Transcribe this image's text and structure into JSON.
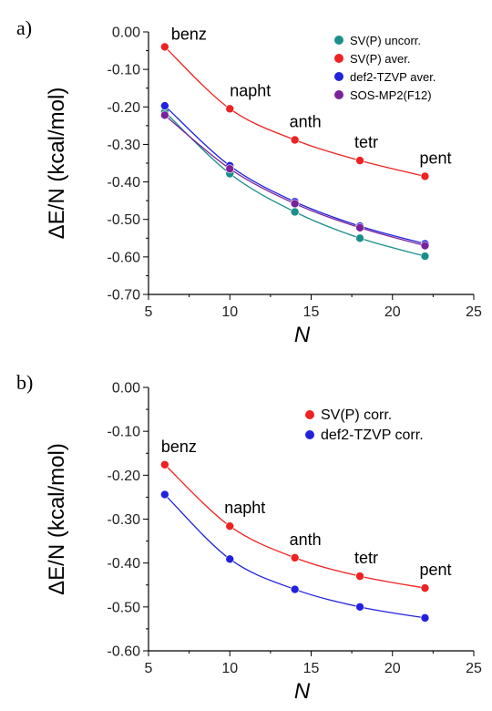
{
  "chart_data": [
    {
      "panel_label": "a)",
      "type": "scatter",
      "xlabel": "N",
      "ylabel": "ΔE/N (kcal/mol)",
      "xlim": [
        5,
        25
      ],
      "ylim": [
        -0.7,
        0.0
      ],
      "xticks": [
        "5",
        "10",
        "15",
        "20",
        "25"
      ],
      "yticks": [
        "0.00",
        "-0.10",
        "-0.20",
        "-0.30",
        "-0.40",
        "-0.50",
        "-0.60",
        "-0.70"
      ],
      "grid": false,
      "legend_position": "top-right",
      "series": [
        {
          "name": "SV(P) uncorr.",
          "color": "#1a8f8a",
          "x": [
            6,
            10,
            14,
            18,
            22
          ],
          "y": [
            -0.213,
            -0.378,
            -0.48,
            -0.55,
            -0.598
          ]
        },
        {
          "name": "SV(P) aver.",
          "color": "#ee2222",
          "x": [
            6,
            10,
            14,
            18,
            22
          ],
          "y": [
            -0.04,
            -0.205,
            -0.288,
            -0.343,
            -0.385
          ]
        },
        {
          "name": "def2-TZVP aver.",
          "color": "#2222dd",
          "x": [
            6,
            10,
            14,
            18,
            22
          ],
          "y": [
            -0.197,
            -0.357,
            -0.453,
            -0.518,
            -0.565
          ]
        },
        {
          "name": "SOS-MP2(F12)",
          "color": "#7a2299",
          "x": [
            6,
            10,
            14,
            18,
            22
          ],
          "y": [
            -0.222,
            -0.365,
            -0.458,
            -0.522,
            -0.57
          ]
        }
      ],
      "annotations": [
        {
          "text": "benz",
          "x": 6,
          "y": -0.04
        },
        {
          "text": "napht",
          "x": 10,
          "y": -0.205
        },
        {
          "text": "anth",
          "x": 14,
          "y": -0.288
        },
        {
          "text": "tetr",
          "x": 18,
          "y": -0.343
        },
        {
          "text": "pent",
          "x": 22,
          "y": -0.385
        }
      ]
    },
    {
      "panel_label": "b)",
      "type": "scatter",
      "xlabel": "N",
      "ylabel": "ΔE/N (kcal/mol)",
      "xlim": [
        5,
        25
      ],
      "ylim": [
        -0.6,
        0.0
      ],
      "xticks": [
        "5",
        "10",
        "15",
        "20",
        "25"
      ],
      "yticks": [
        "0.00",
        "-0.10",
        "-0.20",
        "-0.30",
        "-0.40",
        "-0.50",
        "-0.60"
      ],
      "grid": false,
      "legend_position": "top-right",
      "series": [
        {
          "name": "SV(P) corr.",
          "color": "#ee2222",
          "x": [
            6,
            10,
            14,
            18,
            22
          ],
          "y": [
            -0.176,
            -0.316,
            -0.388,
            -0.43,
            -0.457
          ]
        },
        {
          "name": "def2-TZVP corr.",
          "color": "#2222dd",
          "x": [
            6,
            10,
            14,
            18,
            22
          ],
          "y": [
            -0.244,
            -0.391,
            -0.46,
            -0.5,
            -0.525
          ]
        }
      ],
      "annotations": [
        {
          "text": "benz",
          "x": 6,
          "y": -0.176
        },
        {
          "text": "napht",
          "x": 10,
          "y": -0.316
        },
        {
          "text": "anth",
          "x": 14,
          "y": -0.388
        },
        {
          "text": "tetr",
          "x": 18,
          "y": -0.43
        },
        {
          "text": "pent",
          "x": 22,
          "y": -0.457
        }
      ]
    }
  ]
}
